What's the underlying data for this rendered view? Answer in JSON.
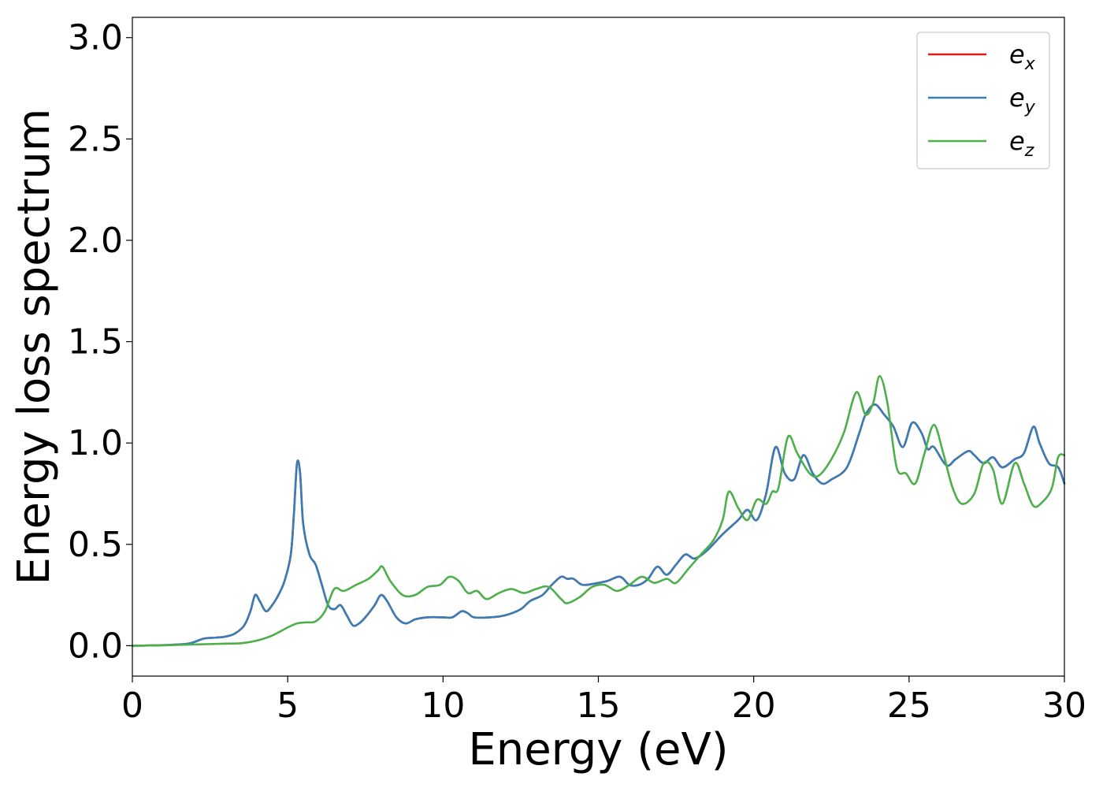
{
  "chart_data": {
    "type": "line",
    "xlabel": "Energy (eV)",
    "ylabel": "Energy loss spectrum",
    "xlim": [
      0,
      30
    ],
    "ylim": [
      -0.15,
      3.1
    ],
    "x_ticks": [
      "0",
      "5",
      "10",
      "15",
      "20",
      "25",
      "30"
    ],
    "y_ticks": [
      "0.0",
      "0.5",
      "1.0",
      "1.5",
      "2.0",
      "2.5",
      "3.0"
    ],
    "x_tick_values": [
      0,
      5,
      10,
      15,
      20,
      25,
      30
    ],
    "y_tick_values": [
      0.0,
      0.5,
      1.0,
      1.5,
      2.0,
      2.5,
      3.0
    ],
    "grid": false,
    "legend_position": "top-right",
    "series": [
      {
        "name": "e_x",
        "legend_base": "e",
        "legend_sub": "x",
        "color": "#e41a1c",
        "points": [
          [
            0,
            0
          ],
          [
            1,
            0.003
          ],
          [
            1.8,
            0.01
          ],
          [
            2.3,
            0.035
          ],
          [
            2.7,
            0.04
          ],
          [
            3.0,
            0.045
          ],
          [
            3.3,
            0.06
          ],
          [
            3.6,
            0.1
          ],
          [
            3.8,
            0.17
          ],
          [
            3.95,
            0.25
          ],
          [
            4.1,
            0.22
          ],
          [
            4.3,
            0.17
          ],
          [
            4.5,
            0.2
          ],
          [
            4.7,
            0.25
          ],
          [
            4.9,
            0.32
          ],
          [
            5.1,
            0.45
          ],
          [
            5.2,
            0.65
          ],
          [
            5.3,
            0.9
          ],
          [
            5.4,
            0.85
          ],
          [
            5.5,
            0.6
          ],
          [
            5.7,
            0.45
          ],
          [
            5.9,
            0.4
          ],
          [
            6.1,
            0.3
          ],
          [
            6.3,
            0.2
          ],
          [
            6.5,
            0.18
          ],
          [
            6.7,
            0.2
          ],
          [
            6.9,
            0.15
          ],
          [
            7.1,
            0.1
          ],
          [
            7.3,
            0.11
          ],
          [
            7.5,
            0.14
          ],
          [
            7.8,
            0.2
          ],
          [
            8.0,
            0.25
          ],
          [
            8.2,
            0.22
          ],
          [
            8.5,
            0.14
          ],
          [
            8.8,
            0.11
          ],
          [
            9.1,
            0.13
          ],
          [
            9.5,
            0.14
          ],
          [
            10.0,
            0.14
          ],
          [
            10.3,
            0.14
          ],
          [
            10.6,
            0.17
          ],
          [
            10.8,
            0.16
          ],
          [
            11.0,
            0.14
          ],
          [
            11.5,
            0.14
          ],
          [
            12.0,
            0.15
          ],
          [
            12.5,
            0.18
          ],
          [
            12.8,
            0.22
          ],
          [
            13.2,
            0.25
          ],
          [
            13.5,
            0.3
          ],
          [
            13.8,
            0.34
          ],
          [
            14.0,
            0.33
          ],
          [
            14.2,
            0.33
          ],
          [
            14.5,
            0.3
          ],
          [
            15.0,
            0.31
          ],
          [
            15.3,
            0.32
          ],
          [
            15.7,
            0.34
          ],
          [
            16.0,
            0.3
          ],
          [
            16.3,
            0.3
          ],
          [
            16.6,
            0.33
          ],
          [
            16.9,
            0.39
          ],
          [
            17.2,
            0.35
          ],
          [
            17.5,
            0.4
          ],
          [
            17.8,
            0.45
          ],
          [
            18.1,
            0.43
          ],
          [
            18.5,
            0.47
          ],
          [
            19.0,
            0.55
          ],
          [
            19.5,
            0.62
          ],
          [
            19.8,
            0.67
          ],
          [
            20.1,
            0.62
          ],
          [
            20.4,
            0.75
          ],
          [
            20.7,
            0.98
          ],
          [
            21.0,
            0.85
          ],
          [
            21.3,
            0.82
          ],
          [
            21.6,
            0.94
          ],
          [
            21.9,
            0.85
          ],
          [
            22.2,
            0.8
          ],
          [
            22.5,
            0.82
          ],
          [
            23.0,
            0.88
          ],
          [
            23.4,
            1.05
          ],
          [
            23.6,
            1.14
          ],
          [
            23.9,
            1.19
          ],
          [
            24.2,
            1.14
          ],
          [
            24.5,
            1.08
          ],
          [
            24.8,
            0.98
          ],
          [
            25.1,
            1.1
          ],
          [
            25.4,
            1.05
          ],
          [
            25.6,
            0.97
          ],
          [
            25.8,
            0.98
          ],
          [
            26.2,
            0.89
          ],
          [
            26.5,
            0.92
          ],
          [
            26.9,
            0.96
          ],
          [
            27.1,
            0.94
          ],
          [
            27.4,
            0.9
          ],
          [
            27.7,
            0.93
          ],
          [
            28.0,
            0.88
          ],
          [
            28.4,
            0.92
          ],
          [
            28.7,
            0.95
          ],
          [
            29.0,
            1.08
          ],
          [
            29.2,
            1.0
          ],
          [
            29.5,
            0.9
          ],
          [
            29.8,
            0.88
          ],
          [
            30.0,
            0.8
          ]
        ]
      },
      {
        "name": "e_y",
        "legend_base": "e",
        "legend_sub": "y",
        "color": "#377eb8",
        "points": [
          [
            0,
            0
          ],
          [
            1,
            0.003
          ],
          [
            1.8,
            0.01
          ],
          [
            2.3,
            0.035
          ],
          [
            2.7,
            0.04
          ],
          [
            3.0,
            0.045
          ],
          [
            3.3,
            0.06
          ],
          [
            3.6,
            0.1
          ],
          [
            3.8,
            0.17
          ],
          [
            3.95,
            0.25
          ],
          [
            4.1,
            0.22
          ],
          [
            4.3,
            0.17
          ],
          [
            4.5,
            0.2
          ],
          [
            4.7,
            0.25
          ],
          [
            4.9,
            0.32
          ],
          [
            5.1,
            0.45
          ],
          [
            5.2,
            0.65
          ],
          [
            5.3,
            0.9
          ],
          [
            5.4,
            0.85
          ],
          [
            5.5,
            0.6
          ],
          [
            5.7,
            0.45
          ],
          [
            5.9,
            0.4
          ],
          [
            6.1,
            0.3
          ],
          [
            6.3,
            0.2
          ],
          [
            6.5,
            0.18
          ],
          [
            6.7,
            0.2
          ],
          [
            6.9,
            0.15
          ],
          [
            7.1,
            0.1
          ],
          [
            7.3,
            0.11
          ],
          [
            7.5,
            0.14
          ],
          [
            7.8,
            0.2
          ],
          [
            8.0,
            0.25
          ],
          [
            8.2,
            0.22
          ],
          [
            8.5,
            0.14
          ],
          [
            8.8,
            0.11
          ],
          [
            9.1,
            0.13
          ],
          [
            9.5,
            0.14
          ],
          [
            10.0,
            0.14
          ],
          [
            10.3,
            0.14
          ],
          [
            10.6,
            0.17
          ],
          [
            10.8,
            0.16
          ],
          [
            11.0,
            0.14
          ],
          [
            11.5,
            0.14
          ],
          [
            12.0,
            0.15
          ],
          [
            12.5,
            0.18
          ],
          [
            12.8,
            0.22
          ],
          [
            13.2,
            0.25
          ],
          [
            13.5,
            0.3
          ],
          [
            13.8,
            0.34
          ],
          [
            14.0,
            0.33
          ],
          [
            14.2,
            0.33
          ],
          [
            14.5,
            0.3
          ],
          [
            15.0,
            0.31
          ],
          [
            15.3,
            0.32
          ],
          [
            15.7,
            0.34
          ],
          [
            16.0,
            0.3
          ],
          [
            16.3,
            0.3
          ],
          [
            16.6,
            0.33
          ],
          [
            16.9,
            0.39
          ],
          [
            17.2,
            0.35
          ],
          [
            17.5,
            0.4
          ],
          [
            17.8,
            0.45
          ],
          [
            18.1,
            0.43
          ],
          [
            18.5,
            0.47
          ],
          [
            19.0,
            0.55
          ],
          [
            19.5,
            0.62
          ],
          [
            19.8,
            0.67
          ],
          [
            20.1,
            0.62
          ],
          [
            20.4,
            0.75
          ],
          [
            20.7,
            0.98
          ],
          [
            21.0,
            0.85
          ],
          [
            21.3,
            0.82
          ],
          [
            21.6,
            0.94
          ],
          [
            21.9,
            0.85
          ],
          [
            22.2,
            0.8
          ],
          [
            22.5,
            0.82
          ],
          [
            23.0,
            0.88
          ],
          [
            23.4,
            1.05
          ],
          [
            23.6,
            1.14
          ],
          [
            23.9,
            1.19
          ],
          [
            24.2,
            1.14
          ],
          [
            24.5,
            1.08
          ],
          [
            24.8,
            0.98
          ],
          [
            25.1,
            1.1
          ],
          [
            25.4,
            1.05
          ],
          [
            25.6,
            0.97
          ],
          [
            25.8,
            0.98
          ],
          [
            26.2,
            0.89
          ],
          [
            26.5,
            0.92
          ],
          [
            26.9,
            0.96
          ],
          [
            27.1,
            0.94
          ],
          [
            27.4,
            0.9
          ],
          [
            27.7,
            0.93
          ],
          [
            28.0,
            0.88
          ],
          [
            28.4,
            0.92
          ],
          [
            28.7,
            0.95
          ],
          [
            29.0,
            1.08
          ],
          [
            29.2,
            1.0
          ],
          [
            29.5,
            0.9
          ],
          [
            29.8,
            0.88
          ],
          [
            30.0,
            0.8
          ]
        ]
      },
      {
        "name": "e_z",
        "legend_base": "e",
        "legend_sub": "z",
        "color": "#4daf4a",
        "points": [
          [
            0,
            0
          ],
          [
            1,
            0.002
          ],
          [
            2,
            0.006
          ],
          [
            3,
            0.01
          ],
          [
            3.5,
            0.012
          ],
          [
            4.0,
            0.025
          ],
          [
            4.5,
            0.05
          ],
          [
            5.0,
            0.09
          ],
          [
            5.3,
            0.11
          ],
          [
            5.6,
            0.115
          ],
          [
            5.9,
            0.12
          ],
          [
            6.2,
            0.17
          ],
          [
            6.5,
            0.28
          ],
          [
            6.8,
            0.27
          ],
          [
            7.2,
            0.3
          ],
          [
            7.6,
            0.33
          ],
          [
            7.9,
            0.37
          ],
          [
            8.05,
            0.39
          ],
          [
            8.3,
            0.32
          ],
          [
            8.7,
            0.25
          ],
          [
            9.1,
            0.25
          ],
          [
            9.5,
            0.29
          ],
          [
            9.9,
            0.3
          ],
          [
            10.2,
            0.34
          ],
          [
            10.5,
            0.32
          ],
          [
            10.8,
            0.26
          ],
          [
            11.1,
            0.27
          ],
          [
            11.4,
            0.23
          ],
          [
            11.8,
            0.26
          ],
          [
            12.2,
            0.28
          ],
          [
            12.6,
            0.26
          ],
          [
            13.0,
            0.28
          ],
          [
            13.4,
            0.29
          ],
          [
            13.8,
            0.23
          ],
          [
            14.0,
            0.21
          ],
          [
            14.4,
            0.24
          ],
          [
            14.8,
            0.29
          ],
          [
            15.2,
            0.3
          ],
          [
            15.6,
            0.27
          ],
          [
            16.0,
            0.3
          ],
          [
            16.4,
            0.34
          ],
          [
            16.8,
            0.31
          ],
          [
            17.2,
            0.33
          ],
          [
            17.5,
            0.31
          ],
          [
            17.9,
            0.38
          ],
          [
            18.3,
            0.45
          ],
          [
            18.7,
            0.52
          ],
          [
            19.0,
            0.62
          ],
          [
            19.2,
            0.76
          ],
          [
            19.5,
            0.68
          ],
          [
            19.8,
            0.62
          ],
          [
            20.1,
            0.72
          ],
          [
            20.4,
            0.7
          ],
          [
            20.6,
            0.76
          ],
          [
            20.8,
            0.78
          ],
          [
            21.1,
            1.03
          ],
          [
            21.4,
            0.95
          ],
          [
            21.8,
            0.85
          ],
          [
            22.1,
            0.84
          ],
          [
            22.5,
            0.92
          ],
          [
            22.9,
            1.05
          ],
          [
            23.3,
            1.25
          ],
          [
            23.6,
            1.14
          ],
          [
            23.85,
            1.2
          ],
          [
            24.05,
            1.33
          ],
          [
            24.3,
            1.2
          ],
          [
            24.6,
            0.88
          ],
          [
            24.9,
            0.85
          ],
          [
            25.2,
            0.8
          ],
          [
            25.5,
            0.95
          ],
          [
            25.8,
            1.09
          ],
          [
            26.1,
            0.95
          ],
          [
            26.4,
            0.78
          ],
          [
            26.7,
            0.7
          ],
          [
            27.1,
            0.75
          ],
          [
            27.4,
            0.9
          ],
          [
            27.7,
            0.87
          ],
          [
            28.0,
            0.7
          ],
          [
            28.4,
            0.9
          ],
          [
            28.7,
            0.8
          ],
          [
            29.0,
            0.69
          ],
          [
            29.3,
            0.71
          ],
          [
            29.6,
            0.78
          ],
          [
            29.8,
            0.93
          ],
          [
            30.0,
            0.94
          ]
        ]
      }
    ]
  }
}
